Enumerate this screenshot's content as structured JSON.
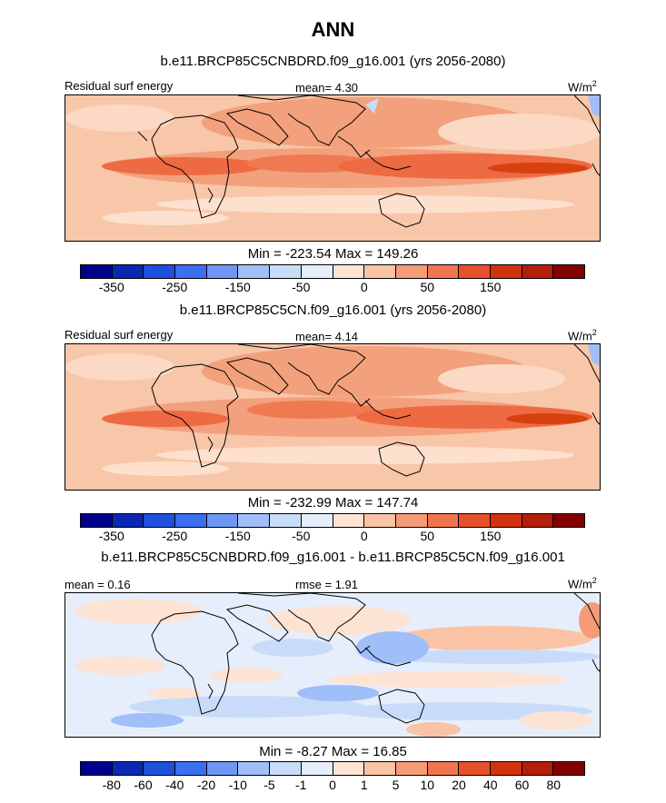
{
  "title": "ANN",
  "panels": [
    {
      "title": "b.e11.BRCP85C5CNBDRD.f09_g16.001 (yrs 2056-2080)",
      "left_label": "Residual surf energy",
      "center_label": "mean=   4.30",
      "units": "W/m",
      "units_exp": "2",
      "min_max": "Min = -223.54 Max = 149.26",
      "ticks": [
        {
          "value": "-350",
          "boundary": 1
        },
        {
          "value": "-250",
          "boundary": 3
        },
        {
          "value": "-150",
          "boundary": 5
        },
        {
          "value": "-50",
          "boundary": 7
        },
        {
          "value": "0",
          "boundary": 9
        },
        {
          "value": "50",
          "boundary": 11
        },
        {
          "value": "150",
          "boundary": 13
        }
      ]
    },
    {
      "title": "b.e11.BRCP85C5CN.f09_g16.001 (yrs 2056-2080)",
      "left_label": "Residual surf energy",
      "center_label": "mean=   4.14",
      "units": "W/m",
      "units_exp": "2",
      "min_max": "Min = -232.99 Max = 147.74",
      "ticks": [
        {
          "value": "-350",
          "boundary": 1
        },
        {
          "value": "-250",
          "boundary": 3
        },
        {
          "value": "-150",
          "boundary": 5
        },
        {
          "value": "-50",
          "boundary": 7
        },
        {
          "value": "0",
          "boundary": 9
        },
        {
          "value": "50",
          "boundary": 11
        },
        {
          "value": "150",
          "boundary": 13
        }
      ]
    },
    {
      "title": "b.e11.BRCP85C5CNBDRD.f09_g16.001 - b.e11.BRCP85C5CN.f09_g16.001",
      "left_label": "mean =   0.16",
      "center_label": "rmse =   1.91",
      "units": "W/m",
      "units_exp": "2",
      "min_max": "Min =  -8.27 Max =  16.85",
      "ticks": [
        {
          "value": "-80",
          "boundary": 1
        },
        {
          "value": "-60",
          "boundary": 2
        },
        {
          "value": "-40",
          "boundary": 3
        },
        {
          "value": "-20",
          "boundary": 4
        },
        {
          "value": "-10",
          "boundary": 5
        },
        {
          "value": "-5",
          "boundary": 6
        },
        {
          "value": "-1",
          "boundary": 7
        },
        {
          "value": "0",
          "boundary": 8
        },
        {
          "value": "1",
          "boundary": 9
        },
        {
          "value": "5",
          "boundary": 10
        },
        {
          "value": "10",
          "boundary": 11
        },
        {
          "value": "20",
          "boundary": 12
        },
        {
          "value": "40",
          "boundary": 13
        },
        {
          "value": "60",
          "boundary": 14
        },
        {
          "value": "80",
          "boundary": 15
        }
      ]
    }
  ],
  "colorbar_colors": [
    "#00008c",
    "#0a28b4",
    "#1e50dc",
    "#3c6ef0",
    "#6e96f5",
    "#a0bef8",
    "#c8dcfa",
    "#e6eefc",
    "#fde3d3",
    "#fac3a5",
    "#f69b78",
    "#f0744e",
    "#e6502a",
    "#d23210",
    "#b41e0a",
    "#820000"
  ],
  "colorbar_colors_diff": [
    "#00008c",
    "#0a28b4",
    "#1e50dc",
    "#3c6ef0",
    "#6e96f5",
    "#a0bef8",
    "#c8dcfa",
    "#e6eefc",
    "#fde3d3",
    "#fac3a5",
    "#f69b78",
    "#f0744e",
    "#e6502a",
    "#d23210",
    "#b41e0a",
    "#820000"
  ]
}
